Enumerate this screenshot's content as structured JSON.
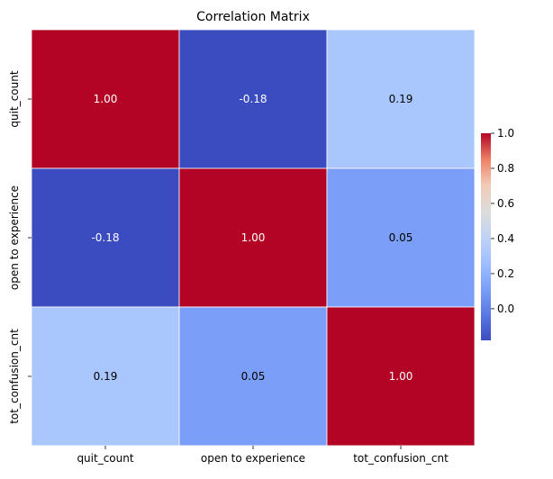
{
  "chart_data": {
    "type": "heatmap",
    "title": "Correlation Matrix",
    "x_labels": [
      "quit_count",
      "open to experience",
      "tot_confusion_cnt"
    ],
    "y_labels": [
      "quit_count",
      "open to experience",
      "tot_confusion_cnt"
    ],
    "values": [
      [
        1.0,
        -0.18,
        0.19
      ],
      [
        -0.18,
        1.0,
        0.05
      ],
      [
        0.19,
        0.05,
        1.0
      ]
    ],
    "cell_labels": [
      [
        "1.00",
        "-0.18",
        "0.19"
      ],
      [
        "-0.18",
        "1.00",
        "0.05"
      ],
      [
        "0.19",
        "0.05",
        "1.00"
      ]
    ],
    "colormap": "coolwarm",
    "vmin": -0.18,
    "vmax": 1.0,
    "colorbar_ticks": [
      "0.0",
      "0.2",
      "0.4",
      "0.6",
      "0.8",
      "1.0"
    ],
    "colorbar_tick_values": [
      0.0,
      0.2,
      0.4,
      0.6,
      0.8,
      1.0
    ],
    "cell_colors": [
      [
        "#b40426",
        "#3b4cc0",
        "#aac7fd"
      ],
      [
        "#3b4cc0",
        "#b40426",
        "#7b9ff9"
      ],
      [
        "#aac7fd",
        "#7b9ff9",
        "#b40426"
      ]
    ],
    "grid_line_color": "#ffffff"
  }
}
